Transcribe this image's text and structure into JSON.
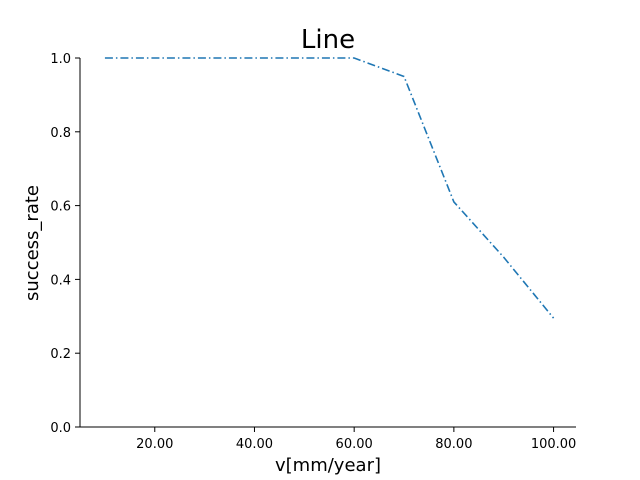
{
  "chart_data": {
    "type": "line",
    "title": "Line",
    "xlabel": "v[mm/year]",
    "ylabel": "success_rate",
    "xlim": [
      5,
      104.5
    ],
    "ylim": [
      0.0,
      1.0
    ],
    "xticks": [
      20,
      40,
      60,
      80,
      100
    ],
    "xtick_labels": [
      "20.00",
      "40.00",
      "60.00",
      "80.00",
      "100.00"
    ],
    "yticks": [
      0.0,
      0.2,
      0.4,
      0.6,
      0.8,
      1.0
    ],
    "ytick_labels": [
      "0.0",
      "0.2",
      "0.4",
      "0.6",
      "0.8",
      "1.0"
    ],
    "grid": false,
    "series": [
      {
        "color": "#1f77b4",
        "x": [
          10,
          20,
          30,
          40,
          50,
          60,
          70,
          80,
          90,
          100
        ],
        "y": [
          1.0,
          1.0,
          1.0,
          1.0,
          1.0,
          1.0,
          0.95,
          0.61,
          0.46,
          0.295
        ]
      }
    ]
  }
}
